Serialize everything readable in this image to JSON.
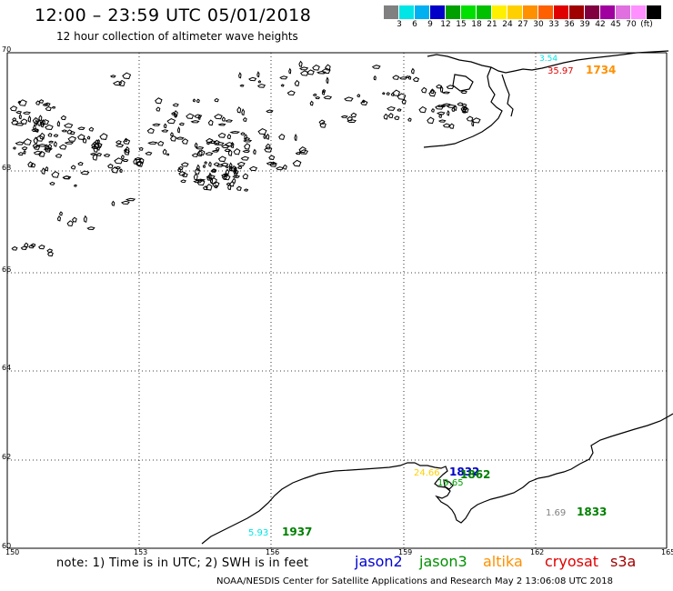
{
  "header": {
    "title": "12:00 – 23:59 UTC 05/01/2018",
    "subtitle": "12 hour collection of altimeter wave heights"
  },
  "colorbar": {
    "unit": "(ft)",
    "colors": [
      "#808080",
      "#00e5e5",
      "#00b0f0",
      "#0000c8",
      "#00a000",
      "#00e000",
      "#00c000",
      "#fff000",
      "#ffd000",
      "#ff9000",
      "#ff6000",
      "#e00000",
      "#a00000",
      "#800040",
      "#a000a0",
      "#e070e0",
      "#ff90ff",
      "#000000"
    ],
    "ticks": [
      "3",
      "6",
      "9",
      "12",
      "15",
      "18",
      "21",
      "24",
      "27",
      "30",
      "33",
      "36",
      "39",
      "42",
      "45",
      "70",
      "(ft)"
    ]
  },
  "map": {
    "lat_labels": [
      "70",
      "68",
      "66",
      "64",
      "62",
      "60"
    ],
    "lon_labels": [
      "150",
      "153",
      "156",
      "159",
      "162",
      "165"
    ],
    "observations": [
      {
        "label": "3.54",
        "color": "#00e5e5"
      },
      {
        "label": "35.97",
        "color": "#e00000"
      },
      {
        "label": "1734",
        "color": "#ff9000"
      },
      {
        "label": "24.66",
        "color": "#ffd000"
      },
      {
        "label": "1832",
        "color": "#0000c8"
      },
      {
        "label": "1862",
        "color": "#008000"
      },
      {
        "label": "19.65",
        "color": "#00a000"
      },
      {
        "label": "5.93",
        "color": "#00e5e5"
      },
      {
        "label": "1937",
        "color": "#008000"
      },
      {
        "label": "1.69",
        "color": "#808080"
      },
      {
        "label": "1833",
        "color": "#008000"
      }
    ]
  },
  "note": "note:  1) Time is in UTC;  2) SWH is in feet",
  "legend": [
    {
      "label": "jason2",
      "color": "#0000d0"
    },
    {
      "label": "jason3",
      "color": "#009000"
    },
    {
      "label": "altika",
      "color": "#ff9000"
    },
    {
      "label": "cryosat",
      "color": "#e00000"
    },
    {
      "label": "s3a",
      "color": "#a00000"
    }
  ],
  "credit": "NOAA/NESDIS Center for Satellite Applications and Research    May  2 13:06:08 UTC 2018"
}
